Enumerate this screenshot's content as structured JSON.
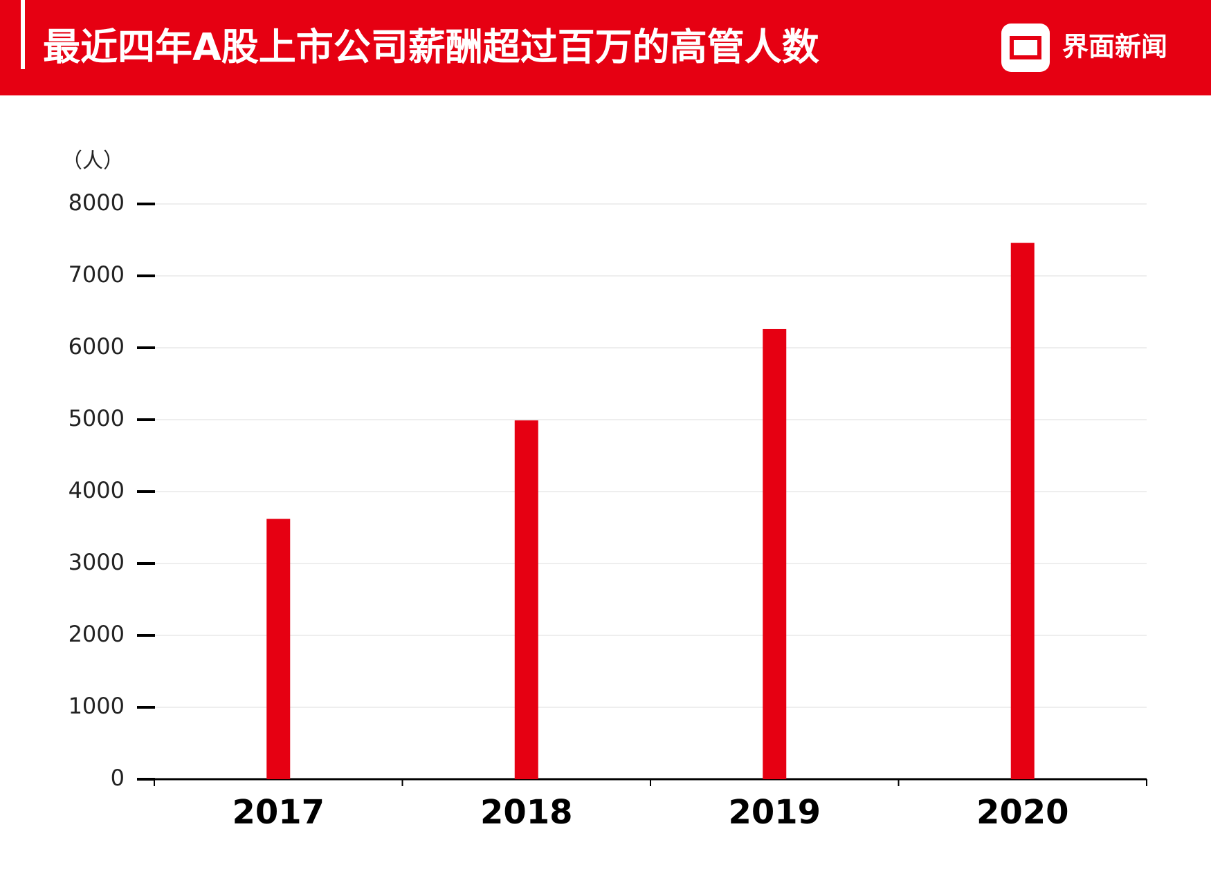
{
  "brand": "界面新闻",
  "chart_data": {
    "type": "bar",
    "title": "最近四年A股上市公司薪酬超过百万的高管人数",
    "y_label": "（人）",
    "categories": [
      "2017",
      "2018",
      "2019",
      "2020"
    ],
    "values": [
      3620,
      4990,
      6260,
      7460
    ],
    "color": "#e60012",
    "ylim": [
      0,
      8000
    ],
    "yticks": [
      0,
      1000,
      2000,
      3000,
      4000,
      5000,
      6000,
      7000,
      8000
    ],
    "grid": true
  }
}
